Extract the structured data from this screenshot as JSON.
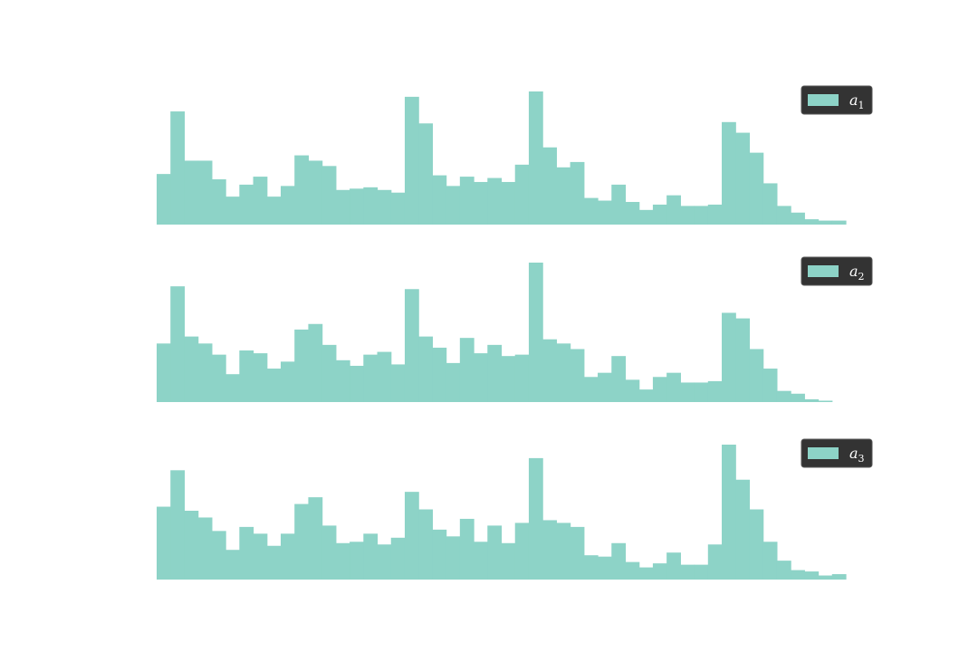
{
  "chart_data": [
    {
      "type": "bar",
      "subtype": "histogram",
      "series": [
        {
          "name": "a",
          "subscript": "1",
          "values": [
            38,
            85,
            48,
            48,
            34,
            21,
            30,
            36,
            21,
            29,
            52,
            48,
            44,
            26,
            27,
            28,
            26,
            24,
            96,
            76,
            37,
            29,
            36,
            32,
            35,
            32,
            45,
            100,
            58,
            43,
            47,
            20,
            18,
            30,
            17,
            11,
            15,
            22,
            14,
            14,
            15,
            77,
            69,
            54,
            31,
            14,
            9,
            4,
            3,
            3
          ]
        }
      ],
      "legend": "top-right",
      "grid": false,
      "color": "#8dd3c7"
    },
    {
      "type": "bar",
      "subtype": "histogram",
      "series": [
        {
          "name": "a",
          "subscript": "2",
          "values": [
            42,
            83,
            47,
            42,
            34,
            20,
            37,
            35,
            24,
            29,
            52,
            56,
            41,
            30,
            26,
            34,
            36,
            27,
            81,
            47,
            39,
            28,
            46,
            35,
            41,
            33,
            34,
            100,
            45,
            42,
            38,
            18,
            21,
            33,
            16,
            9,
            18,
            21,
            14,
            14,
            15,
            64,
            60,
            38,
            24,
            8,
            6,
            2,
            1,
            0
          ]
        }
      ],
      "legend": "top-right",
      "grid": false,
      "color": "#8dd3c7"
    },
    {
      "type": "bar",
      "subtype": "histogram",
      "series": [
        {
          "name": "a",
          "subscript": "3",
          "values": [
            54,
            81,
            51,
            46,
            36,
            22,
            39,
            34,
            25,
            34,
            56,
            61,
            40,
            27,
            28,
            34,
            26,
            31,
            65,
            52,
            37,
            32,
            45,
            28,
            40,
            27,
            42,
            90,
            44,
            42,
            39,
            18,
            17,
            27,
            13,
            9,
            12,
            20,
            11,
            11,
            26,
            100,
            74,
            52,
            28,
            14,
            7,
            6,
            3,
            4
          ]
        }
      ],
      "legend": "top-right",
      "grid": false,
      "color": "#8dd3c7"
    }
  ],
  "colors": {
    "bar": "#8dd3c7",
    "legend_bg": "#333333",
    "legend_text": "#ffffff"
  }
}
